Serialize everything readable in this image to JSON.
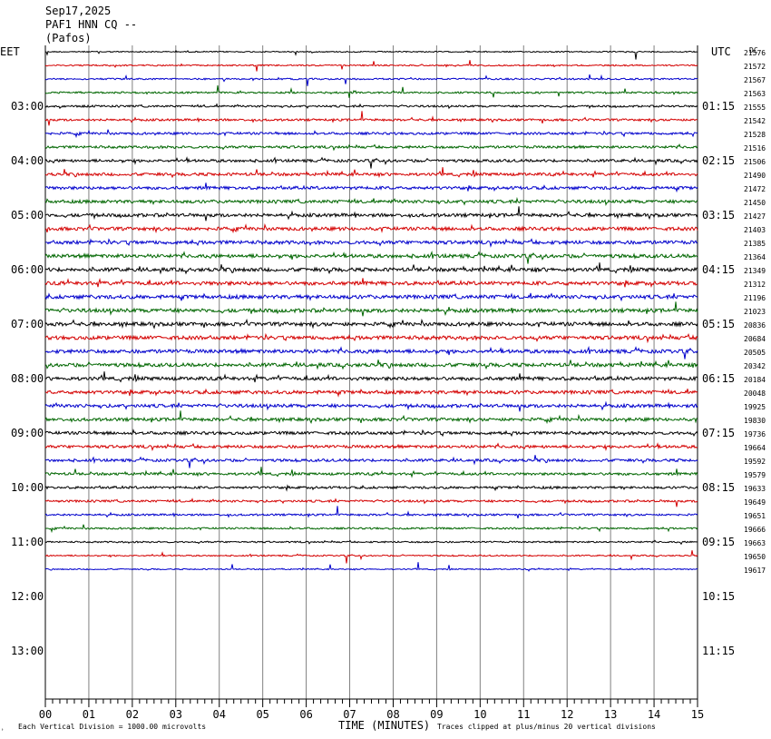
{
  "header": {
    "date": "Sep17,2025",
    "station": "PAF1 HNN CQ --",
    "location": "(Pafos)"
  },
  "left_timezone": "EET",
  "right_timezone": "UTC",
  "dc_label": "DC",
  "xlabel": "TIME (MINUTES)",
  "footer_left": "Each Vertical Division = 1000.00 microvolts",
  "footer_right": "Traces clipped at plus/minus 20 vertical divisions",
  "colors": {
    "black": "#000000",
    "red": "#d40000",
    "blue": "#0000cc",
    "green": "#006600",
    "grid": "#808080"
  },
  "chart_data": {
    "type": "line",
    "title": "PAF1 HNN CQ --",
    "x_ticks": [
      "00",
      "01",
      "02",
      "03",
      "04",
      "05",
      "06",
      "07",
      "08",
      "09",
      "10",
      "11",
      "12",
      "13",
      "14",
      "15"
    ],
    "xlim": [
      0,
      15
    ],
    "left_hour_labels": [
      "03:00",
      "04:00",
      "05:00",
      "06:00",
      "07:00",
      "08:00",
      "09:00",
      "10:00",
      "11:00",
      "12:00",
      "13:00"
    ],
    "right_hour_labels": [
      "01:15",
      "02:15",
      "03:15",
      "04:15",
      "05:15",
      "06:15",
      "07:15",
      "08:15",
      "09:15",
      "10:15",
      "11:15"
    ],
    "trace_colors": [
      "black",
      "red",
      "blue",
      "green"
    ],
    "dc_offsets": [
      21576,
      21572,
      21567,
      21563,
      21555,
      21542,
      21528,
      21516,
      21506,
      21490,
      21472,
      21450,
      21427,
      21403,
      21385,
      21364,
      21349,
      21312,
      21196,
      21023,
      20836,
      20684,
      20505,
      20342,
      20184,
      20048,
      19925,
      19830,
      19736,
      19664,
      19592,
      19579,
      19633,
      19649,
      19651,
      19666,
      19663,
      19650,
      19617
    ],
    "last_trace_end_minute": 15
  }
}
